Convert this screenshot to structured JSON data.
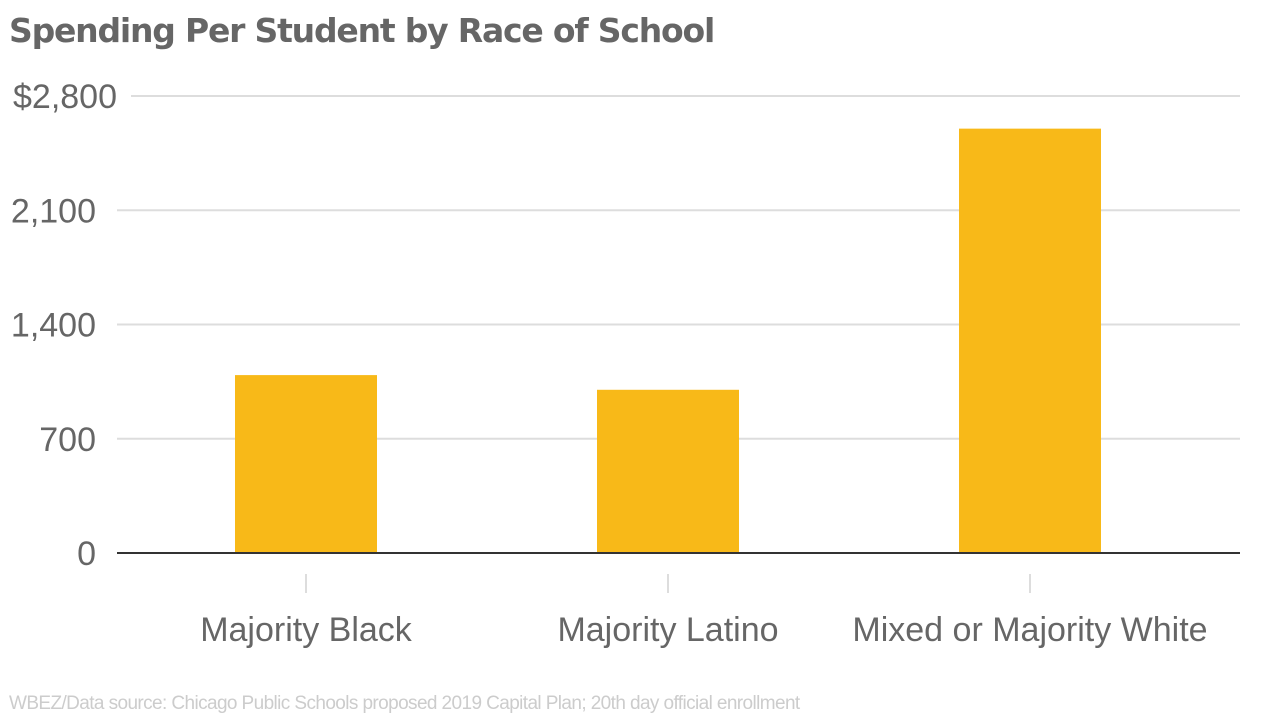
{
  "chart_data": {
    "type": "bar",
    "title": "Spending Per Student by Race of School",
    "source": "WBEZ/Data source: Chicago Public Schools proposed 2019 Capital Plan; 20th day official enrollment",
    "categories": [
      "Majority Black",
      "Majority Latino",
      "Mixed or Majority White"
    ],
    "values": [
      1090,
      1000,
      2600
    ],
    "xlabel": "",
    "ylabel": "",
    "ylim": [
      0,
      2800
    ],
    "yticks": [
      0,
      700,
      1400,
      2100,
      2800
    ],
    "ytick_labels": [
      "0",
      "700",
      "1,400",
      "2,100",
      "$2,800"
    ],
    "grid": true,
    "legend": "none",
    "colors": {
      "bar": "#F8B918",
      "grid": "#dddddd",
      "baseline": "#333333",
      "text": "#666666",
      "source": "#cccccc"
    }
  }
}
